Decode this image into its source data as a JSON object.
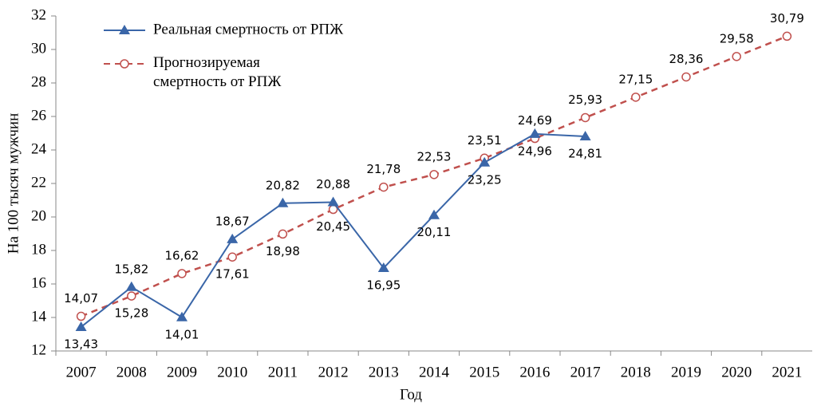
{
  "chart_data": {
    "type": "line",
    "x_label": "Год",
    "y_label": "На 100 тысяч мужчин",
    "categories": [
      "2007",
      "2008",
      "2009",
      "2010",
      "2011",
      "2012",
      "2013",
      "2014",
      "2015",
      "2016",
      "2017",
      "2018",
      "2019",
      "2020",
      "2021"
    ],
    "series": [
      {
        "name": "Реальная смертность от РПЖ",
        "color": "#3a66a8",
        "marker": "triangle",
        "values": [
          13.43,
          15.82,
          14.01,
          18.67,
          20.82,
          20.88,
          16.95,
          20.11,
          23.25,
          24.96,
          24.81,
          null,
          null,
          null,
          null
        ],
        "value_labels": [
          "13,43",
          "15,82",
          "14,01",
          "18,67",
          "20,82",
          "20,88",
          "16,95",
          "20,11",
          "23,25",
          "24,96",
          "24,81",
          null,
          null,
          null,
          null
        ]
      },
      {
        "name": "Прогнозируемая смертность от РПЖ",
        "color": "#c0504d",
        "marker": "circle",
        "dashed": true,
        "values": [
          14.07,
          15.28,
          16.62,
          17.61,
          18.98,
          20.45,
          21.78,
          22.53,
          23.51,
          24.69,
          25.93,
          27.15,
          28.36,
          29.58,
          30.79
        ],
        "value_labels": [
          "14,07",
          "15,28",
          "16,62",
          "17,61",
          "18,98",
          "20,45",
          "21,78",
          "22,53",
          "23,51",
          "24,69",
          "25,93",
          "27,15",
          "28,36",
          "29,58",
          "30,79"
        ]
      }
    ],
    "ylim": [
      12,
      32
    ],
    "yticks": [
      12,
      14,
      16,
      18,
      20,
      22,
      24,
      26,
      28,
      30,
      32
    ],
    "grid": false
  }
}
